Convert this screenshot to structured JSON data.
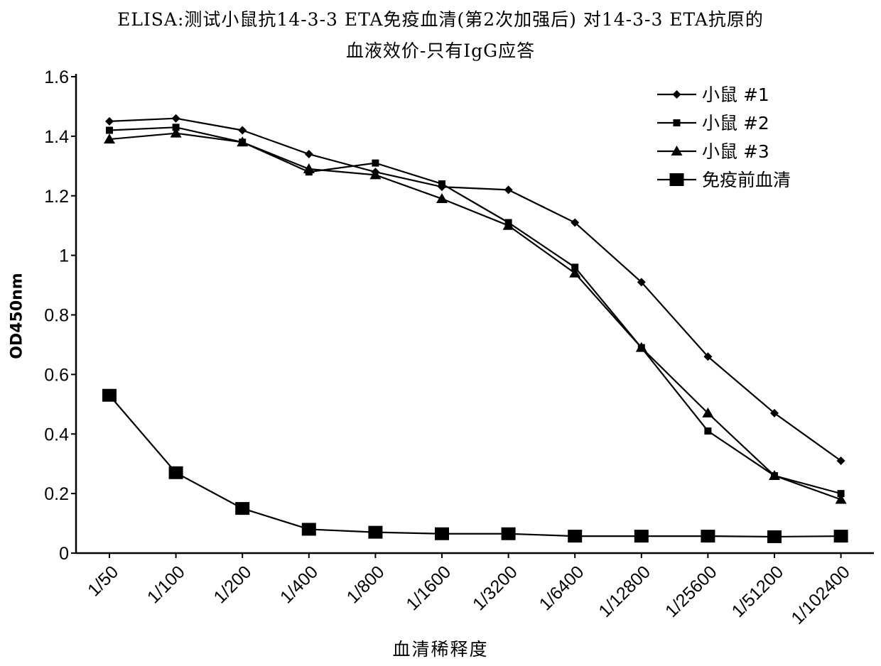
{
  "chart_data": {
    "type": "line",
    "title_line1": "ELISA:测试小鼠抗14-3-3 ETA免疫血清(第2次加强后) 对14-3-3 ETA抗原的",
    "title_line2": "血液效价-只有IgG应答",
    "xlabel": "血清稀释度",
    "ylabel": "OD450nm",
    "ylim": [
      0,
      1.6
    ],
    "yticks": [
      "0",
      "0.2",
      "0.4",
      "0.6",
      "0.8",
      "1",
      "1.2",
      "1.4",
      "1.6"
    ],
    "categories": [
      "1/50",
      "1/100",
      "1/200",
      "1/400",
      "1/800",
      "1/1600",
      "1/3200",
      "1/6400",
      "1/12800",
      "1/25600",
      "1/51200",
      "1/102400"
    ],
    "legend_position": "top-right",
    "grid": false,
    "series": [
      {
        "name": "小鼠 #1",
        "marker": "diamond",
        "values": [
          1.45,
          1.46,
          1.42,
          1.34,
          1.28,
          1.23,
          1.22,
          1.11,
          0.91,
          0.66,
          0.47,
          0.31
        ]
      },
      {
        "name": "小鼠 #2",
        "marker": "small-square",
        "values": [
          1.42,
          1.43,
          1.38,
          1.28,
          1.31,
          1.24,
          1.11,
          0.96,
          0.69,
          0.41,
          0.26,
          0.2
        ]
      },
      {
        "name": "小鼠 #3",
        "marker": "triangle",
        "values": [
          1.39,
          1.41,
          1.38,
          1.29,
          1.27,
          1.19,
          1.1,
          0.94,
          0.69,
          0.47,
          0.26,
          0.18
        ]
      },
      {
        "name": "免疫前血清",
        "marker": "large-square",
        "values": [
          0.53,
          0.27,
          0.15,
          0.08,
          0.07,
          0.065,
          0.065,
          0.057,
          0.057,
          0.057,
          0.055,
          0.057
        ]
      }
    ]
  }
}
